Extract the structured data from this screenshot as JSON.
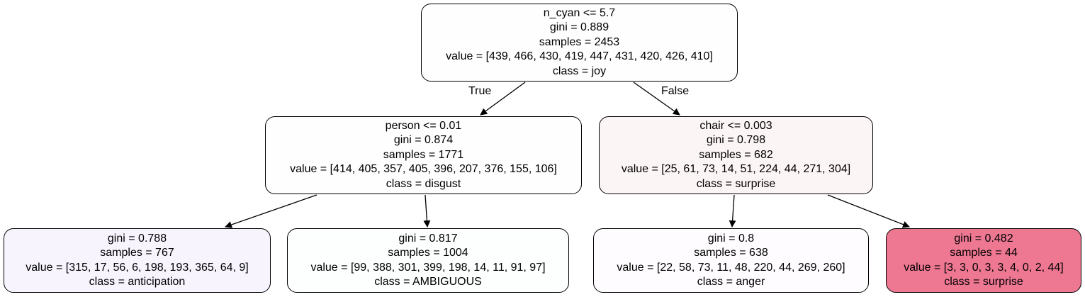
{
  "tree": {
    "root": {
      "split": "n_cyan <= 5.7",
      "gini": "gini = 0.889",
      "samples": "samples = 2453",
      "value": "value = [439, 466, 430, 419, 447, 431, 420, 426, 410]",
      "class": "class = joy",
      "fill": "#fffeff"
    },
    "left": {
      "split": "person <= 0.01",
      "gini": "gini = 0.874",
      "samples": "samples = 1771",
      "value": "value = [414, 405, 357, 405, 396, 207, 376, 155, 106]",
      "class": "class = disgust",
      "fill": "#fefeff"
    },
    "right": {
      "split": "chair <= 0.003",
      "gini": "gini = 0.798",
      "samples": "samples = 682",
      "value": "value = [25, 61, 73, 14, 51, 224, 44, 271, 304]",
      "class": "class = surprise",
      "fill": "#fcf5f6"
    },
    "left_left": {
      "gini": "gini = 0.788",
      "samples": "samples = 767",
      "value": "value = [315, 17, 56, 6, 198, 193, 365, 64, 9]",
      "class": "class = anticipation",
      "fill": "#f7f4fe"
    },
    "left_right": {
      "gini": "gini = 0.817",
      "samples": "samples = 1004",
      "value": "value = [99, 388, 301, 399, 198, 14, 11, 91, 97]",
      "class": "class = AMBIGUOUS",
      "fill": "#fdfffe"
    },
    "right_left": {
      "gini": "gini = 0.8",
      "samples": "samples = 638",
      "value": "value = [22, 58, 73, 11, 48, 220, 44, 269, 260]",
      "class": "class = anger",
      "fill": "#fefcfe"
    },
    "right_right": {
      "gini": "gini = 0.482",
      "samples": "samples = 44",
      "value": "value = [3, 3, 0, 3, 3, 4, 0, 2, 44]",
      "class": "class = surprise",
      "fill": "#ee7792"
    }
  },
  "edges": {
    "true_label": "True",
    "false_label": "False"
  },
  "colors": {
    "edge": "#000000",
    "border": "#000000"
  }
}
